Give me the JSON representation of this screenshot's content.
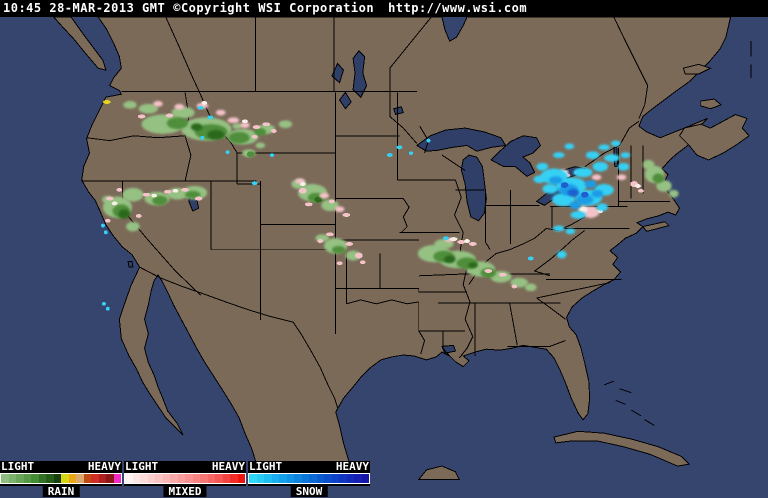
{
  "header": {
    "timestamp": "10:45 28-MAR-2013 GMT",
    "copyright": "©Copyright WSI Corporation",
    "url": "http://www.wsi.com"
  },
  "legend": {
    "panels": [
      {
        "id": "rain",
        "scale_left": "LIGHT",
        "scale_right": "HEAVY",
        "label": "RAIN",
        "colors": [
          "#8fbc7f",
          "#7cb16b",
          "#69a558",
          "#569a46",
          "#438e34",
          "#337225",
          "#255c18",
          "#17400c",
          "#d8d512",
          "#e9a617",
          "#d9a96f",
          "#bf4a12",
          "#cf2f22",
          "#ad2020",
          "#8d1616",
          "#f32bc8"
        ]
      },
      {
        "id": "mixed",
        "scale_left": "LIGHT",
        "scale_right": "HEAVY",
        "label": "MIXED",
        "colors": [
          "#fdf3f2",
          "#fde7e6",
          "#fcdbda",
          "#fccfce",
          "#fbc3c2",
          "#fab7b6",
          "#f9aaa9",
          "#f99e9d",
          "#f89190",
          "#f78483",
          "#f67674",
          "#f56765",
          "#f45654",
          "#f34341",
          "#f22b28",
          "#ee1511"
        ]
      },
      {
        "id": "snow",
        "scale_left": "LIGHT",
        "scale_right": "HEAVY",
        "label": "SNOW",
        "colors": [
          "#2fd8f8",
          "#27cbf4",
          "#20bdf0",
          "#1aafec",
          "#14a1e8",
          "#1093e3",
          "#0d85df",
          "#0b77da",
          "#0a69d5",
          "#0a5bd0",
          "#0b4ecb",
          "#0d41c6",
          "#1035c0",
          "#1329ba",
          "#161eb4",
          "#1714a8"
        ]
      }
    ]
  },
  "map": {
    "colors": {
      "water": "#36456e",
      "lake": "#303f68",
      "land": "#7c6a59",
      "border": "#000000"
    },
    "precipitation": {
      "layers": [
        {
          "name": "rain-light",
          "color": "#95c183",
          "blobs": [
            [
              155,
              128,
              22,
              10
            ],
            [
              200,
              133,
              26,
              12
            ],
            [
              238,
              141,
              16,
              8
            ],
            [
              262,
              133,
              9,
              5
            ],
            [
              176,
              116,
              12,
              6
            ],
            [
              140,
              112,
              10,
              5
            ],
            [
              121,
              108,
              7,
              4
            ],
            [
              282,
              128,
              7,
              4
            ],
            [
              108,
              214,
              15,
              11
            ],
            [
              124,
              201,
              11,
              7
            ],
            [
              149,
              205,
              13,
              7
            ],
            [
              170,
              200,
              11,
              6
            ],
            [
              188,
              199,
              13,
              7
            ],
            [
              124,
              234,
              7,
              5
            ],
            [
              98,
              206,
              6,
              4
            ],
            [
              310,
              199,
              15,
              9
            ],
            [
              328,
              212,
              9,
              6
            ],
            [
              296,
              190,
              8,
              5
            ],
            [
              334,
              254,
              12,
              8
            ],
            [
              352,
              264,
              8,
              5
            ],
            [
              320,
              246,
              7,
              4
            ],
            [
              436,
              262,
              17,
              9
            ],
            [
              460,
              268,
              19,
              9
            ],
            [
              484,
              278,
              15,
              8
            ],
            [
              505,
              286,
              11,
              6
            ],
            [
              524,
              292,
              9,
              5
            ],
            [
              446,
              252,
              10,
              5
            ],
            [
              536,
              297,
              6,
              4
            ],
            [
              664,
              180,
              10,
              9
            ],
            [
              674,
              192,
              8,
              6
            ],
            [
              658,
              170,
              6,
              5
            ],
            [
              684,
              200,
              5,
              4
            ],
            [
              244,
              158,
              7,
              4
            ],
            [
              256,
              150,
              5,
              3
            ],
            [
              232,
              130,
              5,
              3
            ]
          ]
        },
        {
          "name": "rain-medium",
          "color": "#4f8e3a",
          "blobs": [
            [
              205,
              136,
              17,
              8
            ],
            [
              234,
              142,
              11,
              6
            ],
            [
              170,
              127,
              11,
              6
            ],
            [
              256,
              136,
              6,
              4
            ],
            [
              112,
              218,
              9,
              7
            ],
            [
              152,
              207,
              8,
              5
            ],
            [
              186,
              201,
              8,
              4
            ],
            [
              314,
              204,
              9,
              5
            ],
            [
              337,
              258,
              7,
              4
            ],
            [
              446,
              265,
              11,
              6
            ],
            [
              470,
              272,
              11,
              6
            ],
            [
              492,
              282,
              8,
              5
            ],
            [
              668,
              184,
              6,
              5
            ],
            [
              246,
              159,
              4,
              3
            ]
          ]
        },
        {
          "name": "rain-dark",
          "color": "#2c691c",
          "blobs": [
            [
              210,
              139,
              9,
              5
            ],
            [
              190,
              131,
              6,
              4
            ],
            [
              115,
              221,
              6,
              5
            ],
            [
              452,
              268,
              6,
              4
            ],
            [
              476,
              274,
              5,
              3
            ],
            [
              316,
              206,
              4,
              3
            ]
          ]
        },
        {
          "name": "mixed-pink",
          "color": "#f4c2c9",
          "blobs": [
            [
              150,
              107,
              5,
              3
            ],
            [
              172,
              110,
              5,
              3
            ],
            [
              196,
              109,
              6,
              3
            ],
            [
              215,
              116,
              5,
              3
            ],
            [
              228,
              124,
              6,
              3
            ],
            [
              240,
              129,
              5,
              3
            ],
            [
              252,
              131,
              4,
              2
            ],
            [
              133,
              120,
              4,
              2
            ],
            [
              162,
              119,
              4,
              2
            ],
            [
              262,
              128,
              4,
              2
            ],
            [
              250,
              141,
              3,
              2
            ],
            [
              270,
              135,
              3,
              2
            ],
            [
              100,
              205,
              4,
              2
            ],
            [
              138,
              201,
              4,
              2
            ],
            [
              160,
              198,
              4,
              2
            ],
            [
              178,
              196,
              4,
              2
            ],
            [
              192,
              205,
              4,
              2
            ],
            [
              98,
              228,
              3,
              2
            ],
            [
              130,
              223,
              3,
              2
            ],
            [
              110,
              196,
              3,
              2
            ],
            [
              297,
              187,
              5,
              3
            ],
            [
              322,
              202,
              5,
              3
            ],
            [
              338,
              216,
              5,
              3
            ],
            [
              345,
              222,
              4,
              2
            ],
            [
              306,
              211,
              4,
              2
            ],
            [
              300,
              197,
              4,
              3
            ],
            [
              330,
              208,
              3,
              2
            ],
            [
              328,
              242,
              4,
              2
            ],
            [
              348,
              252,
              4,
              2
            ],
            [
              358,
              264,
              4,
              3
            ],
            [
              362,
              271,
              3,
              2
            ],
            [
              338,
              272,
              3,
              2
            ],
            [
              318,
              249,
              3,
              2
            ],
            [
              452,
              248,
              5,
              2
            ],
            [
              464,
              250,
              4,
              2
            ],
            [
              476,
              252,
              4,
              2
            ],
            [
              492,
              280,
              4,
              2
            ],
            [
              507,
              284,
              4,
              2
            ],
            [
              519,
              296,
              3,
              2
            ],
            [
              598,
              219,
              9,
              6
            ],
            [
              604,
              183,
              5,
              3
            ],
            [
              630,
              183,
              5,
              3
            ],
            [
              643,
              190,
              4,
              3
            ],
            [
              650,
              197,
              3,
              2
            ],
            [
              573,
              181,
              4,
              2
            ]
          ]
        },
        {
          "name": "mixed-white",
          "color": "#f8f0e8",
          "blobs": [
            [
              570,
              178,
              5,
              3
            ],
            [
              590,
              216,
              5,
              4
            ],
            [
              647,
              192,
              3,
              2
            ],
            [
              456,
              247,
              4,
              2
            ],
            [
              470,
              249,
              3,
              2
            ],
            [
              300,
              190,
              3,
              2
            ],
            [
              168,
              197,
              3,
              2
            ],
            [
              146,
              202,
              3,
              2
            ],
            [
              105,
              210,
              3,
              2
            ],
            [
              240,
              125,
              3,
              2
            ],
            [
              198,
              106,
              3,
              2
            ],
            [
              584,
              178,
              3,
              2
            ],
            [
              608,
              218,
              3,
              2
            ]
          ]
        },
        {
          "name": "snow-light",
          "color": "#35d0f4",
          "blobs": [
            [
              560,
              182,
              14,
              8
            ],
            [
              578,
              192,
              16,
              9
            ],
            [
              596,
              204,
              14,
              8
            ],
            [
              612,
              196,
              10,
              6
            ],
            [
              570,
              206,
              12,
              7
            ],
            [
              590,
              178,
              10,
              5
            ],
            [
              608,
              172,
              8,
              5
            ],
            [
              620,
              163,
              8,
              4
            ],
            [
              600,
              160,
              7,
              4
            ],
            [
              632,
              172,
              6,
              4
            ],
            [
              556,
              195,
              8,
              5
            ],
            [
              548,
              172,
              6,
              4
            ],
            [
              585,
              222,
              8,
              4
            ],
            [
              610,
              214,
              6,
              4
            ],
            [
              565,
              160,
              6,
              3
            ],
            [
              576,
              151,
              5,
              3
            ],
            [
              612,
              152,
              6,
              3
            ],
            [
              624,
              148,
              5,
              3
            ],
            [
              545,
              185,
              6,
              4
            ],
            [
              634,
              160,
              5,
              3
            ],
            [
              565,
              236,
              6,
              3
            ],
            [
              577,
              239,
              5,
              3
            ],
            [
              568,
              263,
              5,
              4
            ],
            [
              536,
              267,
              3,
              2
            ],
            [
              194,
              111,
              3,
              2
            ],
            [
              204,
              121,
              3,
              2
            ],
            [
              196,
              142,
              2,
              2
            ],
            [
              222,
              157,
              2,
              2
            ],
            [
              250,
              189,
              3,
              2
            ],
            [
              268,
              160,
              2,
              2
            ],
            [
              93,
              233,
              2,
              2
            ],
            [
              96,
              240,
              2,
              2
            ],
            [
              94,
              314,
              2,
              2
            ],
            [
              98,
              319,
              2,
              2
            ],
            [
              390,
              160,
              3,
              2
            ],
            [
              400,
              152,
              3,
              2
            ],
            [
              412,
              158,
              2,
              2
            ],
            [
              448,
              246,
              3,
              2
            ],
            [
              430,
              145,
              2,
              2
            ]
          ]
        },
        {
          "name": "snow-medium",
          "color": "#1e9ce6",
          "blobs": [
            [
              575,
              196,
              10,
              6
            ],
            [
              592,
              206,
              9,
              5
            ],
            [
              562,
              186,
              7,
              4
            ],
            [
              605,
              200,
              6,
              4
            ],
            [
              582,
              212,
              6,
              4
            ],
            [
              598,
              190,
              6,
              4
            ]
          ]
        },
        {
          "name": "snow-dark",
          "color": "#1e5ed0",
          "blobs": [
            [
              580,
              199,
              6,
              4
            ],
            [
              592,
              201,
              4,
              3
            ],
            [
              571,
              191,
              4,
              3
            ]
          ]
        },
        {
          "name": "station-marker-yellow",
          "color": "#e6d41e",
          "blobs": [
            [
              97,
              105,
              4,
              2
            ]
          ]
        }
      ]
    }
  }
}
